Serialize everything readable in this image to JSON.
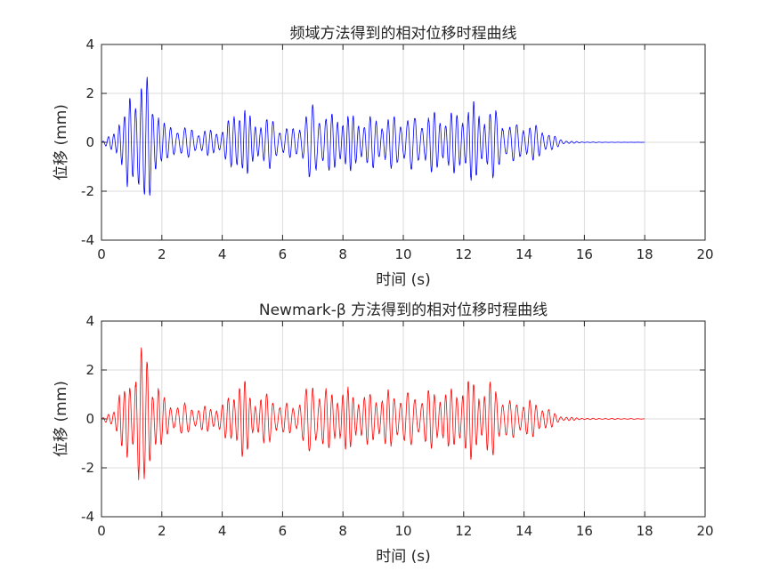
{
  "chart_data": [
    {
      "type": "line",
      "title": "频域方法得到的相对位移时程曲线",
      "xlabel": "时间 (s)",
      "ylabel": "位移 (mm)",
      "xlim": [
        0,
        20
      ],
      "ylim": [
        -4,
        4
      ],
      "xticks": [
        "0",
        "2",
        "4",
        "6",
        "8",
        "10",
        "12",
        "14",
        "16",
        "18",
        "20"
      ],
      "yticks": [
        "-4",
        "-2",
        "0",
        "2",
        "4"
      ],
      "grid": true,
      "color": "#0000ff",
      "series": [
        {
          "x": [
            0,
            0.3,
            0.45,
            0.6,
            0.75,
            0.9,
            1.0,
            1.1,
            1.18,
            1.28,
            1.4,
            1.55,
            1.7,
            1.85,
            2.0,
            2.2,
            2.5,
            2.8,
            3.2,
            3.6,
            4.0,
            4.3,
            4.55,
            4.7,
            4.85,
            5.0,
            5.3,
            5.6,
            6.0,
            6.4,
            6.8,
            7.0,
            7.2,
            7.6,
            8.0,
            8.5,
            9.0,
            9.5,
            10.0,
            10.5,
            11.0,
            11.5,
            12.0,
            12.3,
            12.6,
            13.0,
            13.2,
            13.5,
            14.0,
            14.3,
            14.6,
            15.0,
            15.3,
            15.6,
            16.0,
            17.0,
            18.0
          ],
          "amp": [
            0,
            0.3,
            0.6,
            1.2,
            1.0,
            2.0,
            1.6,
            2.3,
            2.7,
            3.3,
            2.2,
            2.6,
            1.5,
            1.9,
            1.0,
            0.6,
            0.7,
            0.6,
            0.5,
            0.5,
            0.6,
            1.0,
            1.7,
            1.6,
            1.2,
            0.8,
            1.0,
            1.0,
            0.6,
            0.6,
            1.2,
            1.6,
            1.3,
            1.1,
            1.2,
            1.0,
            1.0,
            1.0,
            1.1,
            1.0,
            1.2,
            1.1,
            1.4,
            1.6,
            1.2,
            1.4,
            1.1,
            0.7,
            0.8,
            0.7,
            0.6,
            0.25,
            0.1,
            0.04,
            0.015,
            0.005,
            0.002
          ]
        }
      ]
    },
    {
      "type": "line",
      "title": "Newmark-β 方法得到的相对位移时程曲线",
      "xlabel": "时间 (s)",
      "ylabel": "位移 (mm)",
      "xlim": [
        0,
        20
      ],
      "ylim": [
        -4,
        4
      ],
      "xticks": [
        "0",
        "2",
        "4",
        "6",
        "8",
        "10",
        "12",
        "14",
        "16",
        "18",
        "20"
      ],
      "yticks": [
        "-4",
        "-2",
        "0",
        "2",
        "4"
      ],
      "grid": true,
      "color": "#ff0000",
      "series": [
        {
          "x": [
            0,
            0.3,
            0.45,
            0.6,
            0.75,
            0.9,
            1.0,
            1.1,
            1.18,
            1.28,
            1.4,
            1.55,
            1.7,
            1.85,
            2.0,
            2.2,
            2.5,
            2.8,
            3.2,
            3.6,
            4.0,
            4.3,
            4.55,
            4.7,
            4.85,
            5.0,
            5.3,
            5.6,
            6.0,
            6.4,
            6.8,
            7.0,
            7.2,
            7.6,
            8.0,
            8.5,
            9.0,
            9.5,
            10.0,
            10.5,
            11.0,
            11.5,
            12.0,
            12.3,
            12.6,
            13.0,
            13.2,
            13.5,
            14.0,
            14.3,
            14.6,
            15.0,
            15.3,
            15.6,
            16.0,
            17.0,
            18.0
          ],
          "amp": [
            0,
            0.3,
            0.6,
            1.2,
            1.0,
            2.0,
            1.6,
            2.3,
            2.8,
            3.4,
            2.2,
            2.6,
            1.5,
            1.9,
            1.0,
            0.6,
            0.7,
            0.6,
            0.5,
            0.5,
            0.6,
            1.0,
            1.8,
            1.7,
            1.2,
            0.8,
            1.0,
            1.0,
            0.6,
            0.6,
            1.2,
            1.6,
            1.3,
            1.1,
            1.3,
            1.0,
            1.0,
            1.1,
            1.1,
            1.0,
            1.2,
            1.1,
            1.5,
            1.6,
            1.2,
            1.5,
            1.1,
            0.7,
            0.8,
            0.7,
            0.6,
            0.25,
            0.1,
            0.06,
            0.03,
            0.02,
            0.01
          ]
        }
      ]
    }
  ]
}
